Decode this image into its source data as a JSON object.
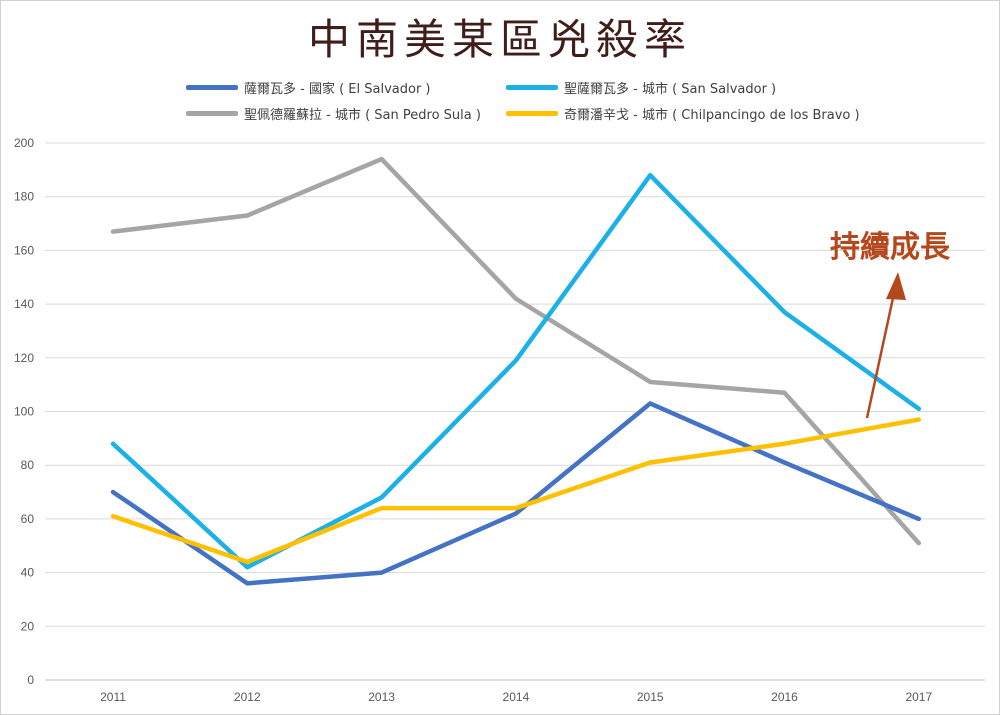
{
  "chart_data": {
    "type": "line",
    "title": "中南美某區兇殺率",
    "categories": [
      "2011",
      "2012",
      "2013",
      "2014",
      "2015",
      "2016",
      "2017"
    ],
    "ylim": [
      0,
      200
    ],
    "yticks": [
      0,
      20,
      40,
      60,
      80,
      100,
      120,
      140,
      160,
      180,
      200
    ],
    "grid": true,
    "legend_position": "top",
    "series": [
      {
        "name": "薩爾瓦多 - 國家 ( El Salvador )",
        "color": "#4472c4",
        "values": [
          70,
          36,
          40,
          62,
          103,
          81,
          60
        ]
      },
      {
        "name": "聖薩爾瓦多 - 城市 ( San Salvador )",
        "color": "#1cb0e8",
        "values": [
          88,
          42,
          68,
          119,
          188,
          137,
          101
        ]
      },
      {
        "name": "聖佩德羅蘇拉 - 城市 ( San Pedro Sula )",
        "color": "#a5a5a5",
        "values": [
          167,
          173,
          194,
          142,
          111,
          107,
          51
        ]
      },
      {
        "name": "奇爾潘辛戈 - 城市 ( Chilpancingo de los Bravo )",
        "color": "#ffc000",
        "values": [
          61,
          44,
          64,
          64,
          81,
          88,
          97
        ]
      }
    ],
    "annotation": {
      "text": "持續成長",
      "color": "#b5471c"
    }
  }
}
